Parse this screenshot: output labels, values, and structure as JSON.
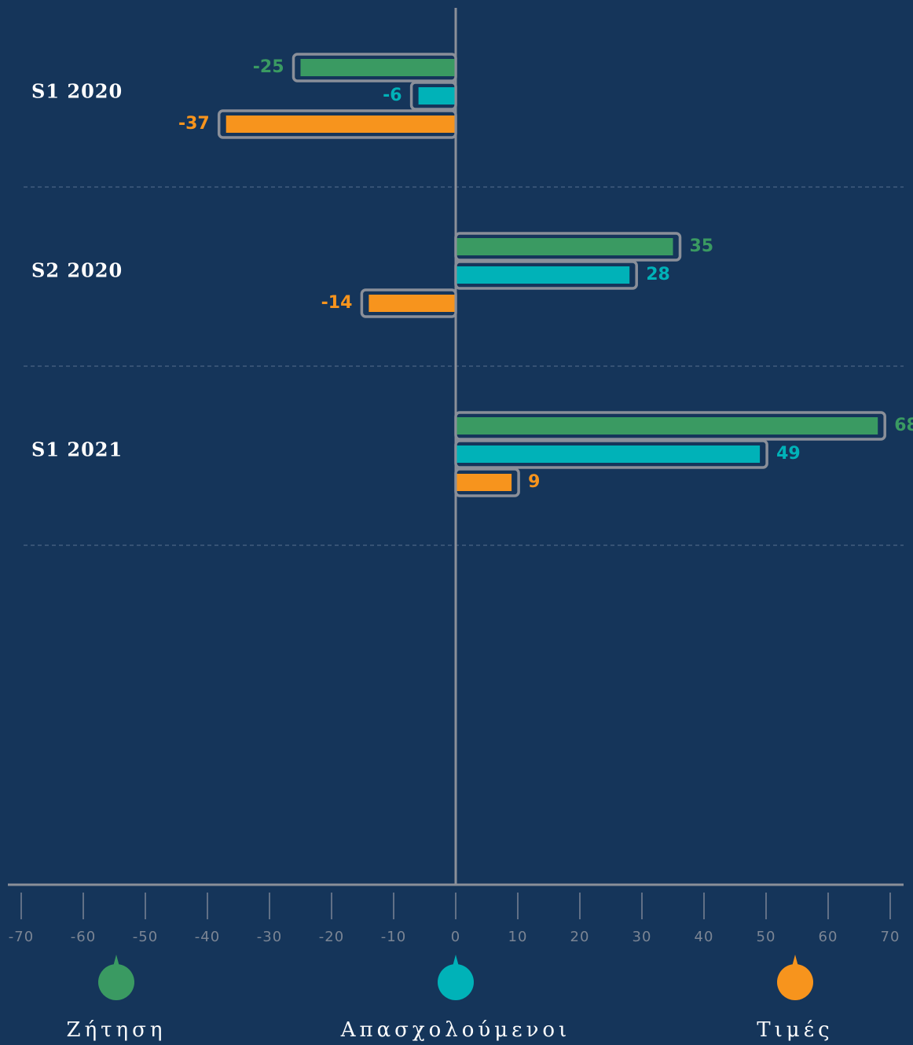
{
  "chart_data": {
    "type": "bar",
    "categories": [
      "S1 2020",
      "S2 2020",
      "S1 2021"
    ],
    "series": [
      {
        "name": "Ζήτηση",
        "color": "#3a9a62",
        "values": [
          -25,
          35,
          68
        ]
      },
      {
        "name": "Απασχολούμενοι",
        "color": "#00b2b8",
        "values": [
          -6,
          28,
          49
        ]
      },
      {
        "name": "Τιμές",
        "color": "#f7941d",
        "values": [
          -37,
          -14,
          9
        ]
      }
    ],
    "xlim": [
      -70,
      70
    ],
    "xticks": [
      -70,
      -60,
      -50,
      -40,
      -30,
      -20,
      -10,
      0,
      10,
      20,
      30,
      40,
      50,
      60,
      70
    ]
  }
}
